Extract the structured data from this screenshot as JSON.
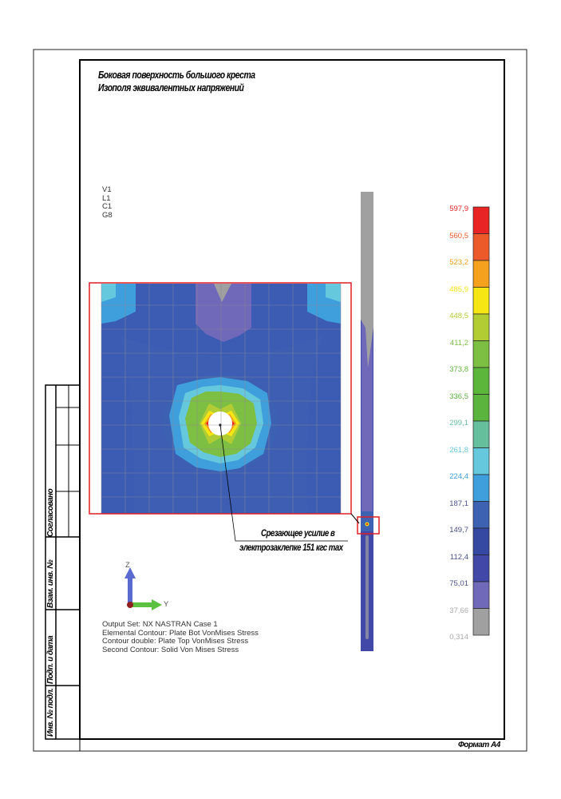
{
  "title": {
    "line1": "Боковая поверхность большого креста",
    "line2": "Изополя эквивалентных напряжений"
  },
  "view_labels": [
    "V1",
    "L1",
    "C1",
    "G8"
  ],
  "legend": {
    "values": [
      "597,9",
      "560,5",
      "523,2",
      "485,9",
      "448,5",
      "411,2",
      "373,8",
      "336,5",
      "299,1",
      "261,8",
      "224,4",
      "187,1",
      "149,7",
      "112,4",
      "75,01",
      "37,66",
      "0,314"
    ],
    "colors": [
      "#e82424",
      "#ec5a2a",
      "#f5a11e",
      "#f6e613",
      "#b2cc34",
      "#7dbf42",
      "#5db63c",
      "#5ab43e",
      "#66bf9c",
      "#66c8dc",
      "#3f9fdc",
      "#3d62b2",
      "#3548a2",
      "#4248a8",
      "#7068b8",
      "#a0a0a0"
    ]
  },
  "annotation": {
    "line1": "Срезающее усилие в",
    "line2": "электрозаклепке   151 кгс max"
  },
  "axes": {
    "z": "Z",
    "y": "Y"
  },
  "output_info": [
    "Output Set: NX NASTRAN Case 1",
    "Elemental Contour: Plate Bot VonMises Stress",
    "Contour double: Plate Top VonMises Stress",
    "Second Contour: Solid Von Mises Stress"
  ],
  "stamp": {
    "agreed": "Согласовано",
    "replaced_inv": "Взам. инв. №",
    "sign_date": "Подп. и дата",
    "inv_orig": "Инв. № подл."
  },
  "format": "Формат А4",
  "highlight_color": "#e01e24"
}
